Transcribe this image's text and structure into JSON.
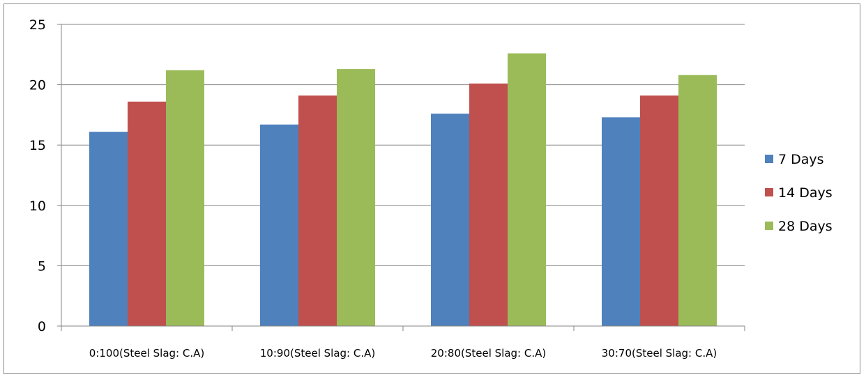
{
  "chart_data": {
    "type": "bar",
    "title": "",
    "xlabel": "",
    "ylabel": "",
    "categories": [
      "0:100(Steel Slag: C.A)",
      "10:90(Steel Slag: C.A)",
      "20:80(Steel Slag: C.A)",
      "30:70(Steel Slag: C.A)"
    ],
    "series": [
      {
        "name": "7 Days",
        "color": "#4f81bd",
        "values": [
          16.1,
          16.7,
          17.6,
          17.3
        ]
      },
      {
        "name": "14 Days",
        "color": "#c0504d",
        "values": [
          18.6,
          19.1,
          20.1,
          19.1
        ]
      },
      {
        "name": "28 Days",
        "color": "#9bbb59",
        "values": [
          21.2,
          21.3,
          22.6,
          20.8
        ]
      }
    ],
    "ylim": [
      0,
      25
    ],
    "yticks": [
      0,
      5,
      10,
      15,
      20,
      25
    ],
    "grid": true,
    "legend_position": "right"
  }
}
